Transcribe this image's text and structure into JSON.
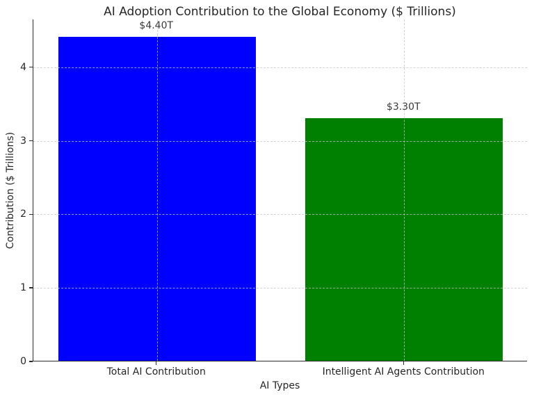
{
  "chart_data": {
    "type": "bar",
    "title": "AI Adoption Contribution to the Global Economy ($ Trillions)",
    "xlabel": "AI Types",
    "ylabel": "Contribution ($ Trillions)",
    "categories": [
      "Total AI Contribution",
      "Intelligent AI Agents Contribution"
    ],
    "values": [
      4.4,
      3.3
    ],
    "bar_labels": [
      "$4.40T",
      "$3.30T"
    ],
    "bar_colors": [
      "#0000ff",
      "#008000"
    ],
    "yticks": [
      0,
      1,
      2,
      3,
      4
    ],
    "ylim": [
      0,
      4.65
    ],
    "grid": "dashed, light gray, horizontal at y ticks and vertical at bar centers, drawn above bars",
    "legend": "none",
    "background_color": "#ffffff",
    "spine_color": "#2b2b2b",
    "grid_color": "#c3c3c3"
  }
}
